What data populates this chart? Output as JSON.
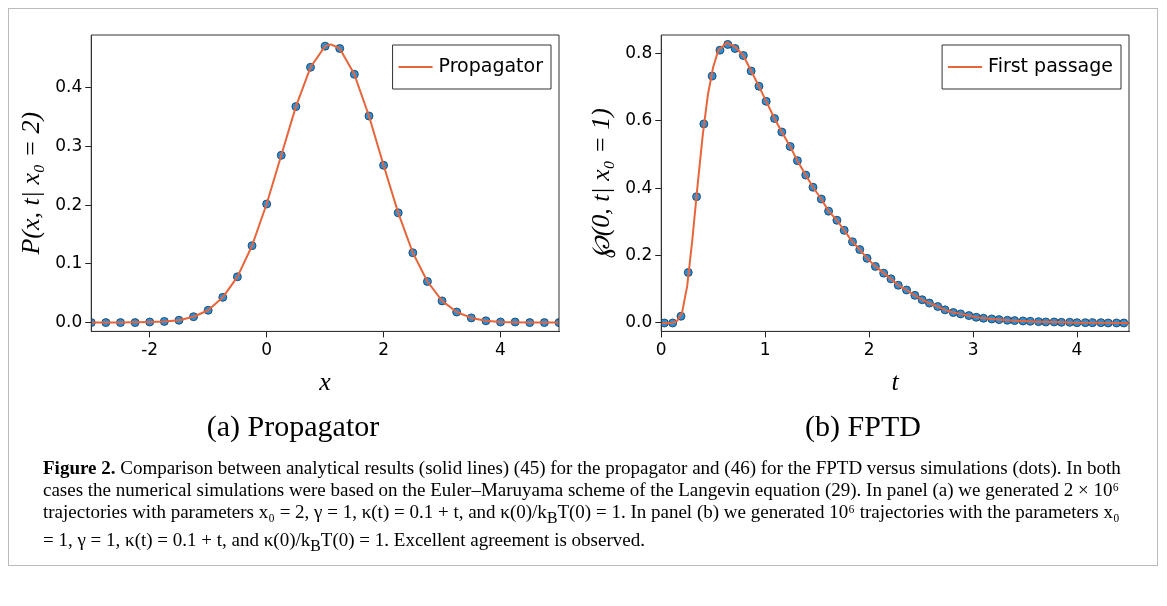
{
  "chart_data": [
    {
      "type": "line",
      "title": "(a) Propagator",
      "xlabel": "x",
      "ylabel": "P(x, t| x₀ = 2)",
      "xlim": [
        -3,
        5
      ],
      "xticks": [
        -2,
        0,
        2,
        4
      ],
      "ylim": [
        -0.015,
        0.49
      ],
      "yticks": [
        {
          "value": 0,
          "label": "0.0"
        },
        0.1,
        0.2,
        0.3,
        0.4
      ],
      "grid": false,
      "legend": "top right",
      "series": [
        {
          "type": "scatter",
          "marker": "circle",
          "color": "#2b8fd8",
          "x": [
            -3,
            -2.75,
            -2.5,
            -2.25,
            -2,
            -1.75,
            -1.5,
            -1.25,
            -1,
            -0.75,
            -0.5,
            -0.25,
            0,
            0.25,
            0.5,
            0.75,
            1,
            1.25,
            1.5,
            1.75,
            2,
            2.25,
            2.5,
            2.75,
            3,
            3.25,
            3.5,
            3.75,
            4,
            4.25,
            4.5,
            4.75,
            5
          ],
          "values": [
            0,
            0,
            0,
            0,
            0.001,
            0.002,
            0.004,
            0.01,
            0.021,
            0.043,
            0.078,
            0.131,
            0.202,
            0.285,
            0.368,
            0.435,
            0.471,
            0.467,
            0.423,
            0.352,
            0.268,
            0.187,
            0.119,
            0.07,
            0.037,
            0.018,
            0.008,
            0.003,
            0.001,
            0.001,
            0,
            0,
            0
          ]
        },
        {
          "name": "Propagator",
          "color": "#e8643a",
          "x": [
            -3,
            -2.5,
            -2,
            -1.75,
            -1.5,
            -1.25,
            -1,
            -0.75,
            -0.5,
            -0.25,
            0,
            0.25,
            0.5,
            0.75,
            1,
            1.1,
            1.25,
            1.5,
            1.75,
            2,
            2.25,
            2.5,
            2.75,
            3,
            3.25,
            3.5,
            3.75,
            4,
            4.5,
            5
          ],
          "values": [
            0,
            0,
            0.001,
            0.002,
            0.004,
            0.01,
            0.021,
            0.043,
            0.078,
            0.131,
            0.202,
            0.285,
            0.368,
            0.435,
            0.471,
            0.474,
            0.467,
            0.423,
            0.352,
            0.268,
            0.187,
            0.119,
            0.07,
            0.037,
            0.018,
            0.008,
            0.003,
            0.001,
            0,
            0
          ]
        }
      ],
      "annotations": [
        "Figure 2.",
        "Comparison between analytical results (solid lines) (45) for the propagator and (46) for the FPTD versus simulations (dots). In both cases the numerical simulations were based on the Euler–Maruyama scheme of the Langevin equation (29). In panel (a) we generated 2 × 10⁶ trajectories with parameters x₀ = 2, γ = 1, κ(t) = 0.1 + t, and κ(0)/k$_{B}$T(0) = 1. In panel (b) we generated 10⁶ trajectories with the parameters x₀ = 1, γ = 1, κ(t) = 0.1 + t, and κ(0)/k$_{B}$T(0) = 1. Excellent agreement is observed."
      ]
    },
    {
      "type": "line",
      "title": "(b) FPTD",
      "xlabel": "t",
      "ylabel": "℘(0, t| x₀ = 1)",
      "xlim": [
        0,
        4.5
      ],
      "xticks": [
        0,
        1,
        2,
        3,
        4
      ],
      "ylim": [
        -0.025,
        0.855
      ],
      "yticks": [
        {
          "value": 0,
          "label": "0.0"
        },
        0.2,
        0.4,
        0.6,
        0.8
      ],
      "grid": false,
      "legend": "top right",
      "series": [
        {
          "type": "scatter",
          "marker": "circle",
          "color": "#2b8fd8",
          "x": [
            0.03,
            0.11,
            0.19,
            0.26,
            0.34,
            0.41,
            0.49,
            0.565,
            0.64,
            0.71,
            0.79,
            0.865,
            0.94,
            1.01,
            1.09,
            1.16,
            1.24,
            1.31,
            1.39,
            1.46,
            1.54,
            1.61,
            1.69,
            1.76,
            1.84,
            1.91,
            1.98,
            2.06,
            2.14,
            2.21,
            2.28,
            2.36,
            2.44,
            2.51,
            2.58,
            2.66,
            2.73,
            2.81,
            2.88,
            2.96,
            3.03,
            3.1,
            3.18,
            3.25,
            3.33,
            3.4,
            3.48,
            3.55,
            3.63,
            3.7,
            3.78,
            3.85,
            3.93,
            4,
            4.08,
            4.15,
            4.23,
            4.3,
            4.38,
            4.45
          ],
          "values": [
            0,
            0,
            0.02,
            0.15,
            0.375,
            0.591,
            0.733,
            0.81,
            0.827,
            0.815,
            0.794,
            0.748,
            0.703,
            0.658,
            0.607,
            0.567,
            0.524,
            0.482,
            0.439,
            0.403,
            0.368,
            0.332,
            0.305,
            0.275,
            0.241,
            0.218,
            0.192,
            0.168,
            0.148,
            0.131,
            0.112,
            0.098,
            0.082,
            0.069,
            0.059,
            0.049,
            0.039,
            0.031,
            0.027,
            0.022,
            0.017,
            0.014,
            0.012,
            0.01,
            0.008,
            0.007,
            0.006,
            0.005,
            0.004,
            0.003,
            0.003,
            0.002,
            0.002,
            0.001,
            0.001,
            0.001,
            0.001,
            0,
            0,
            0
          ]
        },
        {
          "name": "First passage",
          "color": "#e8643a",
          "x": [
            0,
            0.1,
            0.15,
            0.2,
            0.25,
            0.3,
            0.35,
            0.4,
            0.45,
            0.5,
            0.55,
            0.63,
            0.71,
            0.79,
            0.865,
            0.94,
            1.01,
            1.09,
            1.16,
            1.24,
            1.31,
            1.39,
            1.46,
            1.54,
            1.61,
            1.69,
            1.76,
            1.84,
            1.91,
            1.98,
            2.06,
            2.14,
            2.21,
            2.28,
            2.36,
            2.44,
            2.51,
            2.58,
            2.66,
            2.73,
            2.81,
            2.88,
            2.96,
            3.03,
            3.18,
            3.33,
            3.48,
            3.63,
            3.78,
            4,
            4.23,
            4.5
          ],
          "values": [
            0,
            0,
            0.005,
            0.03,
            0.11,
            0.25,
            0.41,
            0.56,
            0.68,
            0.76,
            0.81,
            0.832,
            0.82,
            0.794,
            0.748,
            0.703,
            0.658,
            0.607,
            0.567,
            0.524,
            0.482,
            0.439,
            0.403,
            0.368,
            0.332,
            0.305,
            0.275,
            0.241,
            0.218,
            0.192,
            0.168,
            0.148,
            0.131,
            0.112,
            0.098,
            0.082,
            0.069,
            0.059,
            0.049,
            0.039,
            0.031,
            0.027,
            0.022,
            0.017,
            0.012,
            0.008,
            0.006,
            0.004,
            0.003,
            0.001,
            0.001,
            0
          ]
        }
      ]
    }
  ]
}
